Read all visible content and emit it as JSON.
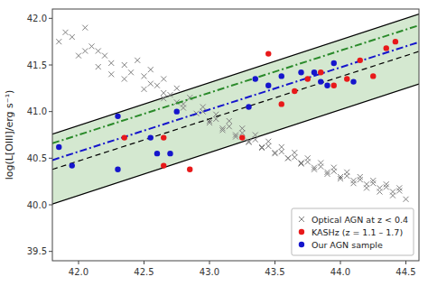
{
  "chart_data": {
    "type": "scatter",
    "ylabel": "log(L[OIII]/erg s⁻¹)",
    "xlim": [
      41.8,
      44.6
    ],
    "ylim": [
      39.4,
      42.1
    ],
    "xticks": [
      {
        "value": 42,
        "label": "42.0"
      },
      42.5,
      {
        "value": 43,
        "label": "43.0"
      },
      43.5,
      {
        "value": 44,
        "label": "44.0"
      },
      44.5
    ],
    "yticks": [
      39.5,
      {
        "value": 40,
        "label": "40.0"
      },
      40.5,
      {
        "value": 41,
        "label": "41.0"
      },
      41.5,
      {
        "value": 42,
        "label": "42.0"
      }
    ],
    "grid": false,
    "legend": "lower right",
    "series": [
      {
        "type": "area",
        "color": "#d4e8d0",
        "x": [
          41.8,
          44.6
        ],
        "values": [
          40.758,
          42.046
        ],
        "lower": [
          40.008,
          41.296
        ]
      },
      {
        "type": "line",
        "color": "#000000",
        "line_style": "dashed",
        "x": [
          41.8,
          44.6
        ],
        "values": [
          40.3796,
          41.6452
        ]
      },
      {
        "type": "line",
        "color": "#2a8a2a",
        "line_style": "dashdot",
        "x": [
          41.8,
          44.6
        ],
        "values": [
          40.6596,
          41.9252
        ]
      },
      {
        "type": "line",
        "color": "#1515cc",
        "line_style": "dashdot",
        "x": [
          41.8,
          44.6
        ],
        "values": [
          40.4796,
          41.7452
        ]
      },
      {
        "type": "scatter",
        "name": "Optical AGN at z < 0.4",
        "color": "#808080",
        "marker": "x",
        "x": [
          41.85,
          42.05,
          42.15,
          42.25,
          42.45,
          42.55,
          42.65,
          42.75,
          42.85,
          42.95,
          43.05,
          43.15,
          43.25,
          43.35,
          43.45,
          43.55,
          43.65,
          43.75,
          43.85,
          43.95,
          44.05,
          44.15,
          44.25,
          44.35,
          44.45,
          41.9,
          42.1,
          42.2,
          42.35,
          42.5,
          42.6,
          42.7,
          42.8,
          42.9,
          43.0,
          43.1,
          43.2,
          43.3,
          43.4,
          43.5,
          43.6,
          43.7,
          43.8,
          43.9,
          44.0,
          44.1,
          44.2,
          44.3,
          44.4,
          44.5,
          41.95,
          42.05,
          42.25,
          42.4,
          42.55,
          42.65,
          42.75,
          42.95,
          43.05,
          43.15,
          43.25,
          43.35,
          43.45,
          43.55,
          43.65,
          43.75,
          43.85,
          43.95,
          44.05,
          44.15,
          44.25,
          44.35,
          44.45,
          42.0,
          42.15,
          42.35,
          42.5,
          42.65,
          42.8,
          43.0,
          43.1,
          43.2,
          43.3,
          43.4,
          43.5,
          43.6,
          43.7,
          43.8,
          43.9,
          44.0,
          44.1,
          44.2,
          44.3,
          44.4
        ],
        "values": [
          41.75,
          41.9,
          41.65,
          41.4,
          41.55,
          41.45,
          41.35,
          41.25,
          41.15,
          41.05,
          40.97,
          40.9,
          40.82,
          40.75,
          40.68,
          40.62,
          40.56,
          40.5,
          40.45,
          40.4,
          40.35,
          40.3,
          40.26,
          40.22,
          40.18,
          41.85,
          41.7,
          41.6,
          41.5,
          41.38,
          41.28,
          41.18,
          41.08,
          40.98,
          40.9,
          40.82,
          40.75,
          40.68,
          40.62,
          40.56,
          40.5,
          40.44,
          40.38,
          40.33,
          40.28,
          40.23,
          40.18,
          40.14,
          40.1,
          40.06,
          41.8,
          41.65,
          41.52,
          41.42,
          41.3,
          41.2,
          41.1,
          41.0,
          40.92,
          40.84,
          40.77,
          40.7,
          40.63,
          40.57,
          40.51,
          40.46,
          40.41,
          40.36,
          40.31,
          40.27,
          40.23,
          40.19,
          40.15,
          41.6,
          41.48,
          41.35,
          41.24,
          41.14,
          41.04,
          40.88,
          40.8,
          40.73,
          40.67,
          40.61,
          40.55,
          40.5,
          40.45,
          40.4,
          40.35,
          40.3,
          40.26,
          40.22,
          40.18,
          40.14
        ]
      },
      {
        "type": "scatter",
        "name": "KASHz (z = 1.1 – 1.7)",
        "color": "#e8191a",
        "marker": "circle",
        "x": [
          42.35,
          42.65,
          42.65,
          42.85,
          43.25,
          43.45,
          43.55,
          43.65,
          43.75,
          43.85,
          43.95,
          44.05,
          44.15,
          44.25,
          44.35,
          44.42
        ],
        "values": [
          40.72,
          40.72,
          40.42,
          40.38,
          40.72,
          41.62,
          41.08,
          41.22,
          41.35,
          41.42,
          41.28,
          41.35,
          41.55,
          41.38,
          41.68,
          41.75
        ]
      },
      {
        "type": "scatter",
        "name": "Our AGN sample",
        "color": "#1515cc",
        "marker": "circle",
        "x": [
          41.85,
          41.95,
          42.3,
          42.3,
          42.55,
          42.6,
          42.7,
          42.75,
          43.3,
          43.35,
          43.45,
          43.55,
          43.7,
          43.8,
          43.85,
          43.9,
          43.95,
          44.1
        ],
        "values": [
          40.62,
          40.42,
          40.95,
          40.38,
          40.72,
          40.55,
          40.55,
          41.0,
          41.05,
          41.35,
          41.28,
          41.38,
          41.42,
          41.42,
          41.32,
          41.28,
          41.52,
          41.32
        ]
      }
    ]
  }
}
